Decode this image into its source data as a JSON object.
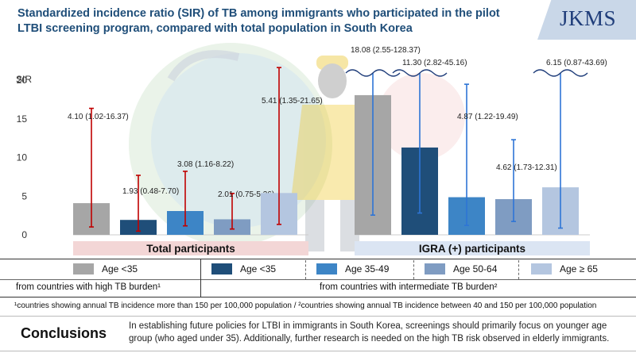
{
  "header": {
    "title": "Standardized incidence ratio (SIR) of TB among immigrants who participated in the pilot LTBI screening program, compared with total population in South Korea",
    "logo_text": "JKMS"
  },
  "chart_data": {
    "type": "bar",
    "ylabel": "SIR",
    "ylim": [
      0,
      23
    ],
    "yticks": [
      0,
      5,
      10,
      15,
      20
    ],
    "grid": false,
    "groups": [
      {
        "label": "Total participants",
        "bars": [
          {
            "category": "Age <35, high TB burden",
            "value": 4.1,
            "ci_low": 1.02,
            "ci_high": 16.37,
            "label": "4.10 (1.02-16.37)",
            "color": "#a6a6a6"
          },
          {
            "category": "Age <35",
            "value": 1.93,
            "ci_low": 0.48,
            "ci_high": 7.7,
            "label": "1.93 (0.48-7.70)",
            "color": "#1f4e79"
          },
          {
            "category": "Age 35-49",
            "value": 3.08,
            "ci_low": 1.16,
            "ci_high": 8.22,
            "label": "3.08 (1.16-8.22)",
            "color": "#3d85c6"
          },
          {
            "category": "Age 50-64",
            "value": 2.01,
            "ci_low": 0.75,
            "ci_high": 5.36,
            "label": "2.01 (0.75-5.36)",
            "color": "#7f9cc2"
          },
          {
            "category": "Age ≥ 65",
            "value": 5.41,
            "ci_low": 1.35,
            "ci_high": 21.65,
            "label": "5.41 (1.35-21.65)",
            "color": "#b4c6e0"
          }
        ]
      },
      {
        "label": "IGRA (+) participants",
        "bars": [
          {
            "category": "Age <35, high TB burden",
            "value": 18.08,
            "ci_low": 2.55,
            "ci_high": 128.37,
            "label": "18.08 (2.55-128.37)",
            "color": "#a6a6a6",
            "truncated": true
          },
          {
            "category": "Age <35",
            "value": 11.3,
            "ci_low": 2.82,
            "ci_high": 45.16,
            "label": "11.30 (2.82-45.16)",
            "color": "#1f4e79",
            "truncated": true
          },
          {
            "category": "Age 35-49",
            "value": 4.87,
            "ci_low": 1.22,
            "ci_high": 19.49,
            "label": "4.87 (1.22-19.49)",
            "color": "#3d85c6"
          },
          {
            "category": "Age 50-64",
            "value": 4.62,
            "ci_low": 1.73,
            "ci_high": 12.31,
            "label": "4.62 (1.73-12.31)",
            "color": "#7f9cc2"
          },
          {
            "category": "Age ≥ 65",
            "value": 6.15,
            "ci_low": 0.87,
            "ci_high": 43.69,
            "label": "6.15 (0.87-43.69)",
            "color": "#b4c6e0",
            "truncated": true
          }
        ]
      }
    ]
  },
  "legend": {
    "items": [
      {
        "label": "Age <35",
        "color": "#a6a6a6"
      },
      {
        "label": "Age <35",
        "color": "#1f4e79"
      },
      {
        "label": "Age 35-49",
        "color": "#3d85c6"
      },
      {
        "label": "Age 50-64",
        "color": "#7f9cc2"
      },
      {
        "label": "Age ≥ 65",
        "color": "#b4c6e0"
      }
    ],
    "origin_high": "from countries with high TB burden¹",
    "origin_intermediate": "from countries with intermediate TB burden²"
  },
  "footnote": "¹countries showing annual TB incidence more than 150 per 100,000 population / ²countries showing annual TB incidence between 40 and 150 per 100,000 population",
  "conclusions": {
    "title": "Conclusions",
    "text": "In establishing future policies for LTBI in immigrants in South Korea, screenings should primarily focus on younger age group (who aged under 35). Additionally, further research is needed on the high TB risk observed in elderly immigrants."
  },
  "colors": {
    "title": "#1f4e79",
    "total_band": "#f3d6d6",
    "igra_band": "#dbe5f3",
    "ci_total": "#c00000",
    "ci_igra": "#2e75d6"
  }
}
